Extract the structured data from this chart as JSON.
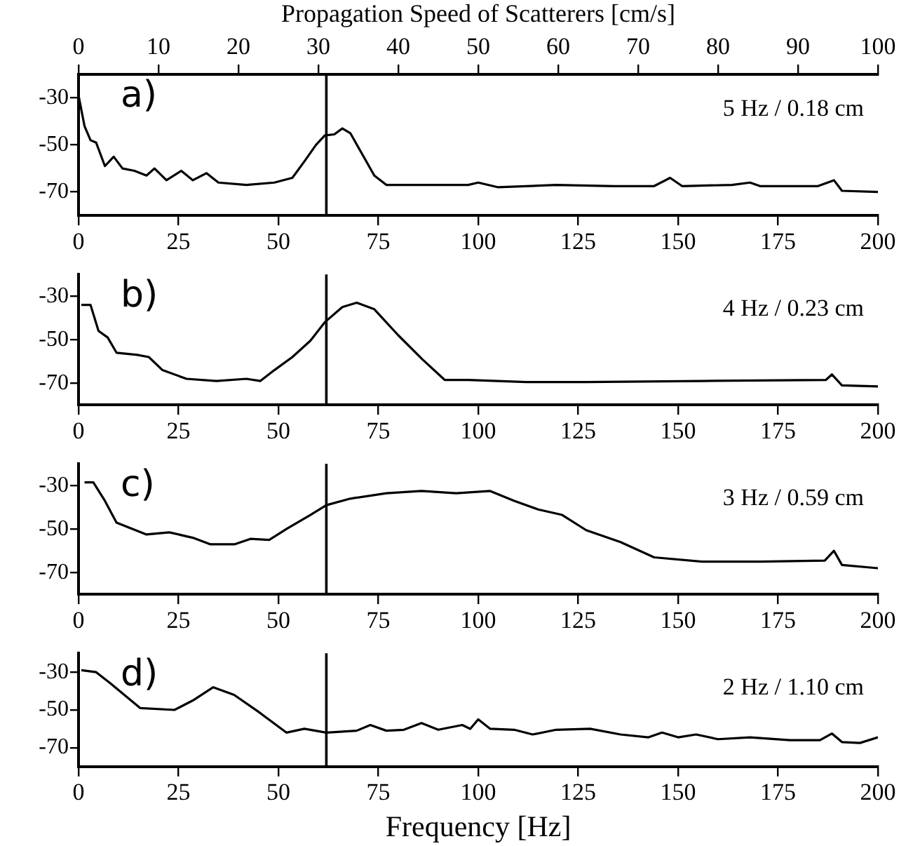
{
  "chart_data": [
    {
      "type": "line",
      "x2label": "Propagation Speed of Scatterers [cm/s]",
      "x2lim": [
        0,
        100
      ],
      "x2ticks": [
        0,
        10,
        20,
        30,
        40,
        50,
        60,
        70,
        80,
        90,
        100
      ],
      "xlim": [
        0,
        200
      ],
      "xticks": [
        0,
        25,
        50,
        75,
        100,
        125,
        150,
        175,
        200
      ],
      "ylim": [
        -80,
        -20
      ],
      "yticks": [
        -30,
        -50,
        -70
      ],
      "grid": false,
      "legend": false,
      "marker": "none",
      "line_style": "solid",
      "annotations": [
        "a)",
        "5 Hz / 0.18 cm"
      ],
      "ref_lines": [
        {
          "axis": "x",
          "value": 62,
          "color": "#000000"
        }
      ],
      "series": [
        {
          "color": "#000000",
          "x": [
            0,
            1.5,
            3,
            4.4,
            6.6,
            8.8,
            11,
            14,
            17,
            19,
            22,
            25.7,
            28.6,
            32,
            35,
            42,
            49,
            53.5,
            56.5,
            59.4,
            61.6,
            64,
            66,
            68,
            71,
            74,
            77,
            83,
            97.5,
            100,
            105,
            119.5,
            134,
            144,
            148,
            151,
            163.5,
            168,
            170.5,
            185,
            189,
            191,
            200
          ],
          "values": [
            -29,
            -42,
            -48,
            -49,
            -59,
            -55,
            -60,
            -61,
            -63,
            -60,
            -65,
            -61,
            -65,
            -62,
            -66,
            -67,
            -66,
            -64,
            -57,
            -50,
            -46,
            -45.5,
            -43,
            -45,
            -54,
            -63,
            -67,
            -67,
            -67,
            -66,
            -68,
            -67,
            -67.5,
            -67.5,
            -64,
            -67.5,
            -67,
            -66,
            -67.5,
            -67.5,
            -65,
            -69.5,
            -70
          ]
        }
      ]
    },
    {
      "type": "line",
      "xlim": [
        0,
        200
      ],
      "xticks": [
        0,
        25,
        50,
        75,
        100,
        125,
        150,
        175,
        200
      ],
      "ylim": [
        -80,
        -20
      ],
      "yticks": [
        -30,
        -50,
        -70
      ],
      "grid": false,
      "legend": false,
      "marker": "none",
      "line_style": "solid",
      "annotations": [
        "b)",
        "4 Hz / 0.23 cm"
      ],
      "ref_lines": [
        {
          "axis": "x",
          "value": 62,
          "color": "#000000"
        }
      ],
      "series": [
        {
          "color": "#000000",
          "x": [
            0.7,
            3,
            5,
            7.3,
            9.5,
            14.7,
            17.6,
            21,
            27,
            34.5,
            42,
            45.5,
            49,
            53.5,
            58,
            61.6,
            66,
            69.6,
            74,
            80,
            86,
            91.6,
            97.5,
            112,
            127,
            156,
            187,
            188.5,
            191,
            200
          ],
          "values": [
            -34,
            -34,
            -46,
            -49,
            -56,
            -57,
            -58,
            -64,
            -68,
            -69,
            -68,
            -69,
            -64,
            -58,
            -50.5,
            -42,
            -35,
            -33,
            -36,
            -48,
            -59,
            -68.5,
            -68.5,
            -69.5,
            -69.5,
            -69,
            -68.5,
            -66,
            -71,
            -71.5
          ]
        }
      ]
    },
    {
      "type": "line",
      "xlim": [
        0,
        200
      ],
      "xticks": [
        0,
        25,
        50,
        75,
        100,
        125,
        150,
        175,
        200
      ],
      "ylim": [
        -80,
        -20
      ],
      "yticks": [
        -30,
        -50,
        -70
      ],
      "grid": false,
      "legend": false,
      "marker": "none",
      "line_style": "solid",
      "annotations": [
        "c)",
        "3 Hz / 0.59 cm"
      ],
      "ref_lines": [
        {
          "axis": "x",
          "value": 62,
          "color": "#000000"
        }
      ],
      "series": [
        {
          "color": "#000000",
          "x": [
            1.5,
            3.7,
            6.6,
            9.5,
            17,
            22.7,
            28.6,
            33,
            39,
            43,
            47.7,
            52,
            58,
            62,
            68,
            77,
            85.8,
            94.5,
            103,
            109,
            115,
            121,
            127,
            135.6,
            144,
            156,
            170.5,
            186.7,
            189,
            191,
            200
          ],
          "values": [
            -28.5,
            -28.5,
            -37,
            -47,
            -52.5,
            -51.5,
            -54,
            -57,
            -57,
            -54.5,
            -55,
            -50,
            -43.5,
            -39,
            -36,
            -33.5,
            -32.5,
            -33.5,
            -32.5,
            -37,
            -41,
            -43.5,
            -50.5,
            -56,
            -63,
            -65,
            -65,
            -64.5,
            -60,
            -66.5,
            -68
          ]
        }
      ]
    },
    {
      "type": "line",
      "xlabel": "Frequency [Hz]",
      "xlim": [
        0,
        200
      ],
      "xticks": [
        0,
        25,
        50,
        75,
        100,
        125,
        150,
        175,
        200
      ],
      "ylim": [
        -80,
        -20
      ],
      "yticks": [
        -30,
        -50,
        -70
      ],
      "grid": false,
      "legend": false,
      "marker": "none",
      "line_style": "solid",
      "annotations": [
        "d)",
        "2 Hz / 1.10 cm"
      ],
      "ref_lines": [
        {
          "axis": "x",
          "value": 62,
          "color": "#000000"
        }
      ],
      "series": [
        {
          "color": "#000000",
          "x": [
            0.7,
            4.4,
            8,
            15.4,
            24,
            28.6,
            33.7,
            38.9,
            44.7,
            52,
            56.5,
            62,
            69.6,
            73,
            77,
            81.4,
            85.8,
            90,
            96,
            98,
            100,
            103,
            109,
            113.6,
            119.5,
            128,
            135.6,
            142.6,
            146,
            150,
            154.5,
            160,
            168,
            178,
            185.5,
            188.5,
            191,
            195.5,
            200
          ],
          "values": [
            -29,
            -30,
            -36,
            -49,
            -50,
            -45,
            -38,
            -42,
            -50.5,
            -62,
            -60,
            -62,
            -61,
            -58,
            -61,
            -60.5,
            -57,
            -60.5,
            -58,
            -60,
            -55,
            -60,
            -60.5,
            -63,
            -60.5,
            -60,
            -63,
            -64.5,
            -62,
            -64.5,
            -63,
            -65.5,
            -64.5,
            -66,
            -66,
            -62.5,
            -67,
            -67.5,
            -64.5
          ]
        }
      ]
    }
  ]
}
